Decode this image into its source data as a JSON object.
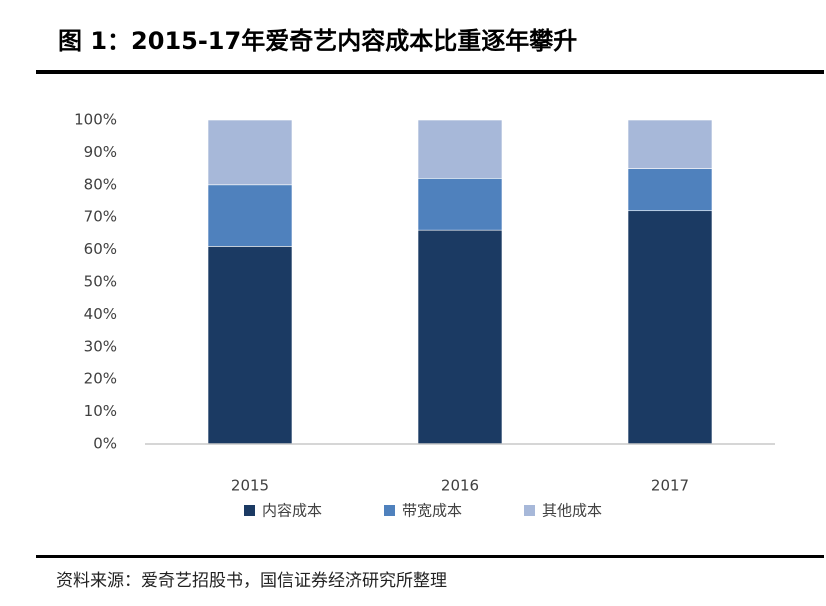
{
  "chart_data": {
    "type": "stacked-bar",
    "title": "图 1：2015-17年爱奇艺内容成本比重逐年攀升",
    "source": "资料来源：爱奇艺招股书，国信证券经济研究所整理",
    "categories": [
      "2015",
      "2016",
      "2017"
    ],
    "series": [
      {
        "name": "内容成本",
        "color": "#1b3a63",
        "values": [
          61,
          66,
          72
        ]
      },
      {
        "name": "带宽成本",
        "color": "#4f81bd",
        "values": [
          19,
          16,
          13
        ]
      },
      {
        "name": "其他成本",
        "color": "#a7b8d9",
        "values": [
          20,
          18,
          15
        ]
      }
    ],
    "ylim": [
      0,
      100
    ],
    "yticks": [
      {
        "value": 0,
        "label": "0%"
      },
      {
        "value": 10,
        "label": "10%"
      },
      {
        "value": 20,
        "label": "20%"
      },
      {
        "value": 30,
        "label": "30%"
      },
      {
        "value": 40,
        "label": "40%"
      },
      {
        "value": 50,
        "label": "50%"
      },
      {
        "value": 60,
        "label": "60%"
      },
      {
        "value": 70,
        "label": "70%"
      },
      {
        "value": 80,
        "label": "80%"
      },
      {
        "value": 90,
        "label": "90%"
      },
      {
        "value": 100,
        "label": "100%"
      }
    ]
  }
}
